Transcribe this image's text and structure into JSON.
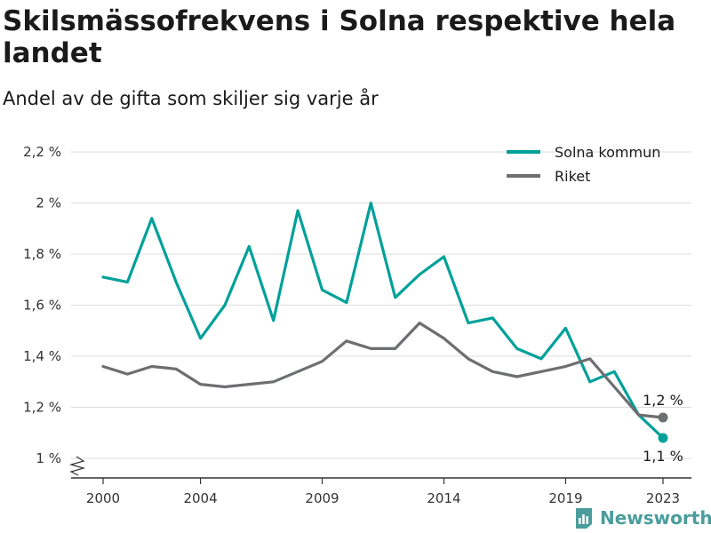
{
  "title": "Skilsmässofrekvens i Solna respektive hela landet",
  "subtitle": "Andel av de gifta som skiljer sig varje år",
  "brand": {
    "name": "Newsworthy",
    "color": "#4a9d9c"
  },
  "chart_data": {
    "type": "line",
    "x": [
      2000,
      2001,
      2002,
      2003,
      2004,
      2005,
      2006,
      2007,
      2008,
      2009,
      2010,
      2011,
      2012,
      2013,
      2014,
      2015,
      2016,
      2017,
      2018,
      2019,
      2020,
      2021,
      2022,
      2023
    ],
    "series": [
      {
        "name": "Solna kommun",
        "color": "#00a19a",
        "values": [
          1.71,
          1.69,
          1.94,
          1.69,
          1.47,
          1.6,
          1.83,
          1.54,
          1.97,
          1.66,
          1.61,
          2.0,
          1.63,
          1.72,
          1.79,
          1.53,
          1.55,
          1.43,
          1.39,
          1.51,
          1.3,
          1.34,
          1.17,
          1.08
        ],
        "end_label": "1,1 %"
      },
      {
        "name": "Riket",
        "color": "#6d6e71",
        "values": [
          1.36,
          1.33,
          1.36,
          1.35,
          1.29,
          1.28,
          1.29,
          1.3,
          1.34,
          1.38,
          1.46,
          1.43,
          1.43,
          1.53,
          1.47,
          1.39,
          1.34,
          1.32,
          1.34,
          1.36,
          1.39,
          1.28,
          1.17,
          1.16
        ],
        "end_label": "1,2 %"
      }
    ],
    "xticks": [
      2000,
      2004,
      2009,
      2014,
      2019,
      2023
    ],
    "xtick_labels": [
      "2000",
      "2004",
      "2009",
      "2014",
      "2019",
      "2023"
    ],
    "yticks": [
      1.0,
      1.2,
      1.4,
      1.6,
      1.8,
      2.0,
      2.2
    ],
    "ytick_labels": [
      "1 %",
      "1,2 %",
      "1,4 %",
      "1,6 %",
      "1,8 %",
      "2 %",
      "2,2 %"
    ],
    "ylim": [
      1.0,
      2.2
    ],
    "xlim": [
      2000,
      2023
    ],
    "grid": true,
    "legend": "top-right",
    "axis_break": true
  }
}
